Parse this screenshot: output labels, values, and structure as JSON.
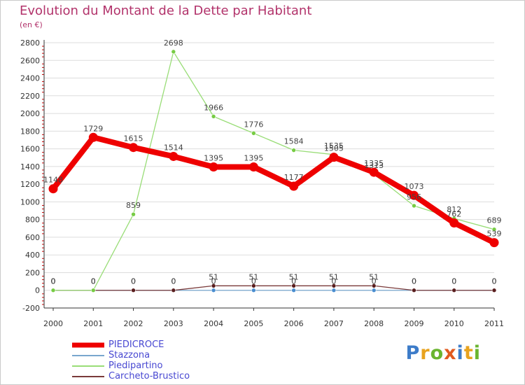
{
  "title": "Evolution du Montant de la Dette par Habitant",
  "subtitle": "(en €)",
  "colors": {
    "title": "#b2336b",
    "legend_text": "#4848d2",
    "grid": "#dddddd"
  },
  "brand": {
    "letters": [
      {
        "char": "P",
        "color": "#3d7cc9"
      },
      {
        "char": "r",
        "color": "#e8a31f"
      },
      {
        "char": "o",
        "color": "#6ab530"
      },
      {
        "char": "x",
        "color": "#e15a1f"
      },
      {
        "char": "i",
        "color": "#3d7cc9"
      },
      {
        "char": "t",
        "color": "#e8a31f"
      },
      {
        "char": "i",
        "color": "#6ab530"
      }
    ]
  },
  "chart_data": {
    "type": "line",
    "title": "Evolution du Montant de la Dette par Habitant",
    "subtitle": "(en €)",
    "x": [
      "2000",
      "2001",
      "2002",
      "2003",
      "2004",
      "2005",
      "2006",
      "2007",
      "2008",
      "2009",
      "2010",
      "2011"
    ],
    "ylim": [
      -200,
      2800
    ],
    "yticks": [
      -200,
      0,
      200,
      400,
      600,
      800,
      1000,
      1200,
      1400,
      1600,
      1800,
      2000,
      2200,
      2400,
      2600,
      2800
    ],
    "grid": "horizontal",
    "legend_position": "bottom-left",
    "series": [
      {
        "name": "PIEDICROCE",
        "color": "#ee0000",
        "marker_color": "#ee0000",
        "line_width": "thick",
        "values": [
          1148,
          1729,
          1615,
          1514,
          1395,
          1395,
          1177,
          1505,
          1335,
          1073,
          762,
          539
        ],
        "labels": [
          "1148",
          "1729",
          "1615",
          "1514",
          "1395",
          "1395",
          "1177",
          "1505",
          "1335",
          "1073",
          "762",
          "539"
        ]
      },
      {
        "name": "Stazzona",
        "color": "#79a7ce",
        "marker_color": "#4a8ed0",
        "line_width": "thin",
        "values": [
          0,
          0,
          0,
          0,
          0,
          0,
          0,
          0,
          0,
          0,
          0,
          0
        ],
        "labels": [
          "0",
          "0",
          "0",
          "0",
          "0",
          "0",
          "0",
          "0",
          "0",
          "0",
          "0",
          "0"
        ]
      },
      {
        "name": "Piedipartino",
        "color": "#99dd77",
        "marker_color": "#77cc44",
        "line_width": "thin",
        "values": [
          0,
          0,
          859,
          2698,
          1966,
          1776,
          1584,
          1535,
          1313,
          956,
          812,
          689
        ],
        "labels": [
          "0",
          "0",
          "859",
          "2698",
          "1966",
          "1776",
          "1584",
          "1535",
          "1313",
          "956",
          "812",
          "689"
        ]
      },
      {
        "name": "Carcheto-Brustico",
        "color": "#7a3a3a",
        "marker_color": "#5a1f1f",
        "line_width": "thin",
        "values": [
          0,
          0,
          0,
          0,
          51,
          51,
          51,
          51,
          51,
          0,
          0,
          0
        ],
        "labels": [
          "0",
          "0",
          "0",
          "0",
          "51",
          "51",
          "51",
          "51",
          "51",
          "0",
          "0",
          "0"
        ]
      }
    ]
  }
}
